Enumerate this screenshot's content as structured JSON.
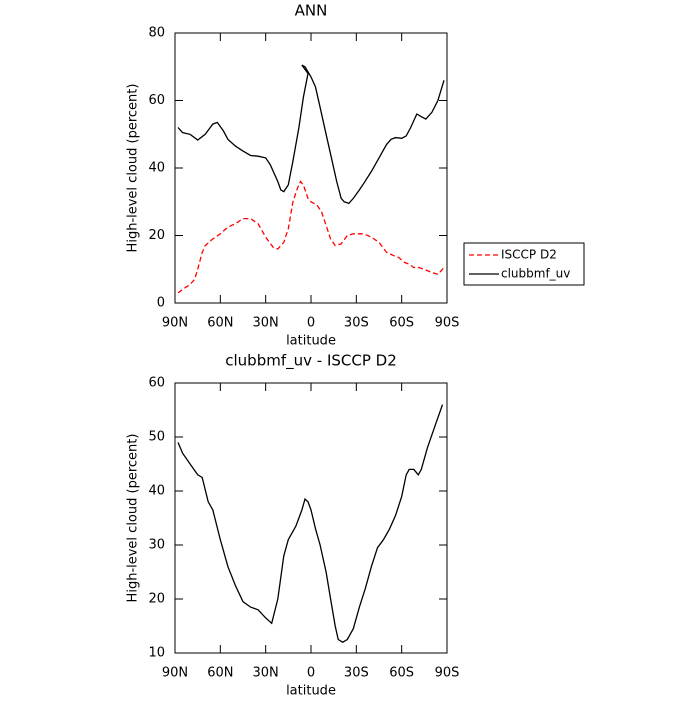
{
  "chart_data": [
    {
      "type": "line",
      "title": "ANN",
      "xlabel": "latitude",
      "ylabel": "High-level cloud (percent)",
      "xlim": [
        90,
        -90
      ],
      "ylim": [
        0,
        80
      ],
      "xticks": [
        {
          "value": 90,
          "label": "90N"
        },
        {
          "value": 60,
          "label": "60N"
        },
        {
          "value": 30,
          "label": "30N"
        },
        0,
        {
          "value": -30,
          "label": "30S"
        },
        {
          "value": -60,
          "label": "60S"
        },
        {
          "value": -90,
          "label": "90S"
        }
      ],
      "yticks": [
        0,
        20,
        40,
        60,
        80
      ],
      "legend": "right",
      "series": [
        {
          "name": "ISCCP D2",
          "color": "#ff0000",
          "dash": true,
          "x": [
            88,
            85,
            80,
            77,
            75,
            72,
            70,
            65,
            60,
            55,
            50,
            45,
            40,
            35,
            30,
            25,
            22,
            18,
            15,
            12,
            9,
            7,
            5,
            2,
            0,
            -4,
            -7,
            -10,
            -13,
            -16,
            -20,
            -24,
            -28,
            -35,
            -40,
            -45,
            -50,
            -55,
            -58,
            -62,
            -65,
            -68,
            -70,
            -75,
            -80,
            -84,
            -88
          ],
          "values": [
            3,
            4,
            5.5,
            7,
            10,
            15,
            17,
            19,
            20.5,
            22.5,
            23.5,
            25,
            25,
            23.5,
            19.5,
            16.5,
            16,
            18,
            22,
            30,
            34,
            36,
            35,
            31,
            30,
            29,
            27,
            23,
            19,
            17,
            17.5,
            20,
            20.5,
            20.5,
            19.5,
            18,
            15,
            14,
            13.5,
            12,
            11.5,
            10.5,
            10.7,
            10,
            9,
            8.5,
            10.5
          ]
        },
        {
          "name": "clubbmf_uv",
          "color": "#000000",
          "dash": false,
          "x": [
            88,
            85,
            80,
            75,
            70,
            65,
            62,
            58,
            55,
            50,
            45,
            40,
            35,
            30,
            27,
            22,
            20,
            18,
            15,
            12,
            8,
            5,
            2,
            6,
            4,
            0,
            -3,
            -6,
            -10,
            -14,
            -17,
            -20,
            -22,
            -25,
            -28,
            -32,
            -35,
            -40,
            -45,
            -50,
            -53,
            -56,
            -60,
            -63,
            -66,
            -70,
            -73,
            -76,
            -80,
            -84,
            -88
          ],
          "values": [
            52,
            50.5,
            50,
            48.3,
            50,
            53,
            53.5,
            51,
            48.5,
            46.5,
            45,
            43.7,
            43.5,
            43,
            41,
            36,
            33.5,
            33,
            35,
            42,
            52,
            61,
            68,
            70.5,
            70,
            67,
            64,
            58,
            50,
            42,
            36,
            31,
            30,
            29.5,
            31,
            33.5,
            35.5,
            39,
            43,
            47,
            48.5,
            49,
            48.8,
            49.5,
            52,
            56,
            55.2,
            54.5,
            56.5,
            60,
            66
          ]
        }
      ]
    },
    {
      "type": "line",
      "title": "clubbmf_uv - ISCCP D2",
      "xlabel": "latitude",
      "ylabel": "High-level cloud (percent)",
      "xlim": [
        90,
        -90
      ],
      "ylim": [
        10,
        60
      ],
      "xticks": [
        {
          "value": 90,
          "label": "90N"
        },
        {
          "value": 60,
          "label": "60N"
        },
        {
          "value": 30,
          "label": "30N"
        },
        0,
        {
          "value": -30,
          "label": "30S"
        },
        {
          "value": -60,
          "label": "60S"
        },
        {
          "value": -90,
          "label": "90S"
        }
      ],
      "yticks": [
        10,
        20,
        30,
        40,
        50,
        60
      ],
      "series": [
        {
          "color": "#000000",
          "x": [
            88,
            85,
            80,
            75,
            72,
            68,
            65,
            60,
            55,
            50,
            45,
            40,
            35,
            30,
            26,
            22,
            18,
            15,
            10,
            6,
            4,
            2,
            0,
            -3,
            -6,
            -10,
            -13,
            -16,
            -18,
            -21,
            -24,
            -28,
            -32,
            -36,
            -40,
            -44,
            -48,
            -52,
            -56,
            -60,
            -63,
            -65,
            -68,
            -71,
            -73,
            -77,
            -82,
            -87
          ],
          "values": [
            49,
            47,
            45,
            43,
            42.5,
            38,
            36.5,
            31,
            26,
            22.5,
            19.5,
            18.5,
            18,
            16.5,
            15.5,
            20,
            28,
            31,
            33.5,
            36.5,
            38.5,
            38,
            36.5,
            33,
            30,
            25,
            20,
            15,
            12.5,
            12,
            12.5,
            14.5,
            18.5,
            22,
            26,
            29.5,
            31,
            33,
            35.5,
            39,
            43,
            44,
            44,
            43,
            44,
            48,
            52,
            56
          ]
        }
      ]
    }
  ]
}
